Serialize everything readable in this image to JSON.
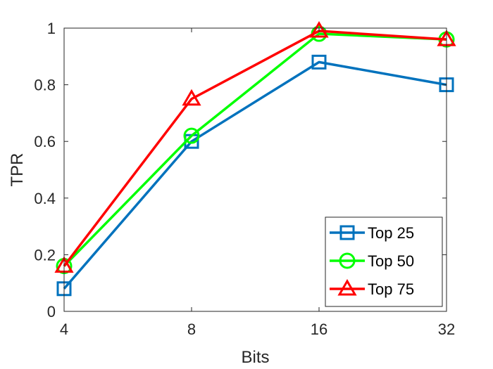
{
  "chart_data": {
    "type": "line",
    "categories": [
      "4",
      "8",
      "16",
      "32"
    ],
    "xlabel": "Bits",
    "ylabel": "TPR",
    "ylim": [
      0,
      1
    ],
    "yticks": [
      "0",
      "0.2",
      "0.4",
      "0.6",
      "0.8",
      "1"
    ],
    "grid": false,
    "legend_position": "bottom-right",
    "series": [
      {
        "name": "Top 25",
        "values": [
          0.08,
          0.6,
          0.88,
          0.8
        ],
        "color": "#0072BD",
        "marker": "square"
      },
      {
        "name": "Top 50",
        "values": [
          0.16,
          0.62,
          0.98,
          0.96
        ],
        "color": "#00FF00",
        "marker": "circle"
      },
      {
        "name": "Top 75",
        "values": [
          0.16,
          0.75,
          0.99,
          0.96
        ],
        "color": "#FF0000",
        "marker": "triangle"
      }
    ]
  }
}
